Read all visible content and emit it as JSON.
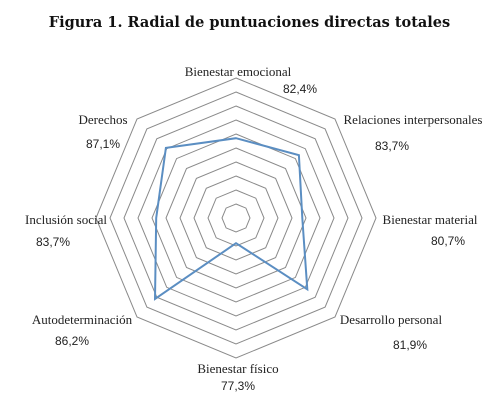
{
  "chart_data": {
    "type": "radar",
    "title": "Figura 1. Radial de puntuaciones directas totales",
    "categories": [
      "Bienestar emocional",
      "Relaciones interpersonales",
      "Bienestar material",
      "Desarrollo personal",
      "Bienestar físico",
      "Autodeterminación",
      "Inclusión social",
      "Derechos"
    ],
    "value_labels": [
      "82,4%",
      "83,7%",
      "80,7%",
      "81,9%",
      "77,3%",
      "86,2%",
      "83,7%",
      "87,1%"
    ],
    "series": [
      {
        "values": [
          34.2,
          38.1,
          28.4,
          43.2,
          10.8,
          49.1,
          34.2,
          42.5
        ]
      }
    ],
    "rmin": 0,
    "rmax": 60,
    "ring_step": 6,
    "grid": true,
    "line_color": "#5b8ec2",
    "grid_color": "#8a8a8a"
  }
}
